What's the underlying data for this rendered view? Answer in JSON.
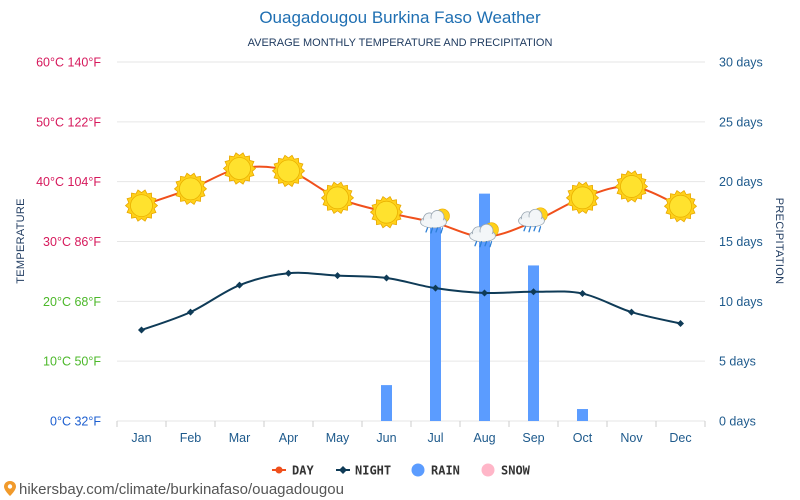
{
  "header": {
    "title": "Ouagadougou Burkina Faso Weather",
    "subtitle": "AVERAGE MONTHLY TEMPERATURE AND PRECIPITATION"
  },
  "footer": {
    "url": "hikersbay.com/climate/burkinafaso/ouagadougou"
  },
  "colors": {
    "day": "#f0501c",
    "night": "#0f3b57",
    "rain": "#5b9cff",
    "snow": "#ffb6c8",
    "grid": "#e6e6e6",
    "tick_hot": "#d6195c",
    "tick_mild": "#4cb82a",
    "tick_cold": "#1d5fd0"
  },
  "chart_data": {
    "type": "line",
    "categories": [
      "Jan",
      "Feb",
      "Mar",
      "Apr",
      "May",
      "Jun",
      "Jul",
      "Aug",
      "Sep",
      "Oct",
      "Nov",
      "Dec"
    ],
    "y_left": {
      "title": "TEMPERATURE",
      "range": [
        0,
        60
      ],
      "ticks": [
        {
          "value": 0,
          "label": "0°C 32°F"
        },
        {
          "value": 10,
          "label": "10°C 50°F"
        },
        {
          "value": 20,
          "label": "20°C 68°F"
        },
        {
          "value": 30,
          "label": "30°C 86°F"
        },
        {
          "value": 40,
          "label": "40°C 104°F"
        },
        {
          "value": 50,
          "label": "50°C 122°F"
        },
        {
          "value": 60,
          "label": "60°C 140°F"
        }
      ]
    },
    "y_right": {
      "title": "PRECIPITATION",
      "range": [
        0,
        30
      ],
      "ticks": [
        {
          "value": 0,
          "label": "0 days"
        },
        {
          "value": 5,
          "label": "5 days"
        },
        {
          "value": 10,
          "label": "10 days"
        },
        {
          "value": 15,
          "label": "15 days"
        },
        {
          "value": 20,
          "label": "20 days"
        },
        {
          "value": 25,
          "label": "25 days"
        },
        {
          "value": 30,
          "label": "30 days"
        }
      ]
    },
    "grid": true,
    "legend_position": "bottom",
    "series": [
      {
        "name": "DAY",
        "kind": "line",
        "axis": "left",
        "values": [
          36,
          38.8,
          42.2,
          41.8,
          37.3,
          34.9,
          33.1,
          30.8,
          33.3,
          37.3,
          39.2,
          35.9
        ],
        "icons": [
          "sun",
          "sun",
          "sun",
          "sun",
          "sun",
          "sun",
          "cloud-rain",
          "cloud-rain",
          "cloud-rain",
          "sun",
          "sun",
          "sun"
        ]
      },
      {
        "name": "NIGHT",
        "kind": "line",
        "axis": "left",
        "values": [
          15.2,
          18.2,
          22.7,
          24.7,
          24.3,
          23.9,
          22.2,
          21.4,
          21.6,
          21.3,
          18.2,
          16.3
        ]
      },
      {
        "name": "RAIN",
        "kind": "bar",
        "axis": "right",
        "values": [
          0,
          0,
          0,
          0,
          0,
          3,
          17,
          19,
          13,
          1,
          0,
          0
        ]
      },
      {
        "name": "SNOW",
        "kind": "bar",
        "axis": "right",
        "values": [
          0,
          0,
          0,
          0,
          0,
          0,
          0,
          0,
          0,
          0,
          0,
          0
        ]
      }
    ]
  }
}
